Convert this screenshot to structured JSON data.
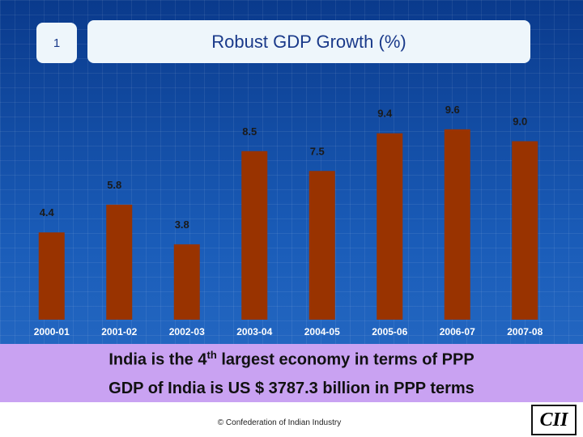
{
  "slide_number": "1",
  "chart_data": {
    "type": "bar",
    "title": "Robust GDP Growth (%)",
    "categories": [
      "2000-01",
      "2001-02",
      "2002-03",
      "2003-04",
      "2004-05",
      "2005-06",
      "2006-07",
      "2007-08"
    ],
    "values": [
      4.4,
      5.8,
      3.8,
      8.5,
      7.5,
      9.4,
      9.6,
      9
    ],
    "value_labels": [
      "4.4",
      "5.8",
      "3.8",
      "8.5",
      "7.5",
      "9.4",
      "9.6",
      "9.0"
    ],
    "color": "#993300"
  },
  "banner": {
    "line1": {
      "before": "India is the 4",
      "sup": "th",
      "after": " largest economy in terms of PPP"
    },
    "line2": "GDP of India is US $ 3787.3 billion in PPP terms"
  },
  "footer": {
    "copyright": "© Confederation of Indian Industry",
    "logo": "CII"
  }
}
